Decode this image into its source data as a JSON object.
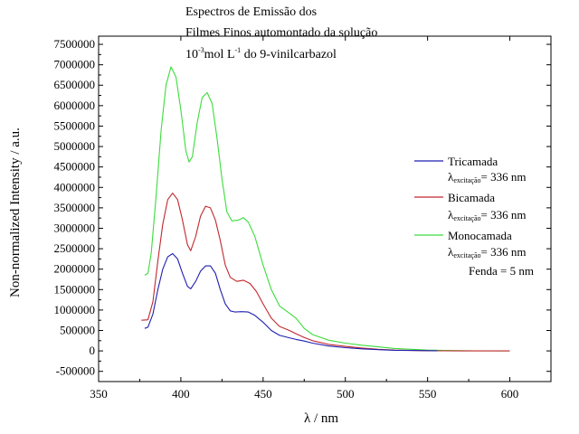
{
  "chart_data": {
    "type": "line",
    "title_lines": [
      "Espectros de Emissão dos",
      "Filmes Finos automontado da solução"
    ],
    "title_line3": {
      "prefix": "10",
      "exp": "-3",
      "mid": "mol L",
      "exp2": "-1",
      "suffix": " do 9-vinilcarbazol"
    },
    "xlabel": "λ / nm",
    "ylabel": "Non-normalized Intensity / a.u.",
    "xlim": [
      350,
      625
    ],
    "ylim": [
      -750000,
      7700000
    ],
    "xticks": [
      350,
      400,
      450,
      500,
      550,
      600
    ],
    "yticks": [
      -500000,
      0,
      500000,
      1000000,
      1500000,
      2000000,
      2500000,
      3000000,
      3500000,
      4000000,
      4500000,
      5000000,
      5500000,
      6000000,
      6500000,
      7000000,
      7500000
    ],
    "legend_placement": "right",
    "grid": false,
    "series": [
      {
        "name": "Tricamada",
        "note": {
          "prefix": "λ",
          "sub": "excitação",
          "suffix": "= 336 nm"
        },
        "color": "#1f1fb0",
        "points": [
          [
            378,
            550000
          ],
          [
            380,
            580000
          ],
          [
            383,
            900000
          ],
          [
            386,
            1500000
          ],
          [
            389,
            2000000
          ],
          [
            392,
            2300000
          ],
          [
            395,
            2380000
          ],
          [
            398,
            2250000
          ],
          [
            401,
            1900000
          ],
          [
            404,
            1580000
          ],
          [
            406,
            1520000
          ],
          [
            409,
            1700000
          ],
          [
            412,
            1950000
          ],
          [
            415,
            2080000
          ],
          [
            418,
            2080000
          ],
          [
            421,
            1900000
          ],
          [
            424,
            1500000
          ],
          [
            427,
            1150000
          ],
          [
            430,
            980000
          ],
          [
            433,
            950000
          ],
          [
            437,
            960000
          ],
          [
            441,
            950000
          ],
          [
            445,
            870000
          ],
          [
            450,
            700000
          ],
          [
            455,
            500000
          ],
          [
            460,
            380000
          ],
          [
            466,
            320000
          ],
          [
            470,
            280000
          ],
          [
            475,
            240000
          ],
          [
            480,
            190000
          ],
          [
            490,
            120000
          ],
          [
            500,
            80000
          ],
          [
            510,
            50000
          ],
          [
            520,
            30000
          ],
          [
            530,
            15000
          ],
          [
            540,
            10000
          ],
          [
            556,
            5000
          ]
        ]
      },
      {
        "name": "Bicamada",
        "note": {
          "prefix": "λ",
          "sub": "excitação",
          "suffix": "= 336 nm"
        },
        "color": "#c0282d",
        "points": [
          [
            376,
            750000
          ],
          [
            380,
            760000
          ],
          [
            383,
            1200000
          ],
          [
            386,
            2200000
          ],
          [
            389,
            3100000
          ],
          [
            392,
            3700000
          ],
          [
            395,
            3860000
          ],
          [
            398,
            3700000
          ],
          [
            401,
            3200000
          ],
          [
            404,
            2600000
          ],
          [
            406,
            2450000
          ],
          [
            409,
            2800000
          ],
          [
            412,
            3300000
          ],
          [
            415,
            3540000
          ],
          [
            418,
            3500000
          ],
          [
            421,
            3200000
          ],
          [
            424,
            2700000
          ],
          [
            427,
            2100000
          ],
          [
            430,
            1800000
          ],
          [
            434,
            1700000
          ],
          [
            438,
            1730000
          ],
          [
            442,
            1650000
          ],
          [
            446,
            1450000
          ],
          [
            450,
            1150000
          ],
          [
            455,
            800000
          ],
          [
            460,
            600000
          ],
          [
            466,
            500000
          ],
          [
            470,
            420000
          ],
          [
            475,
            330000
          ],
          [
            480,
            250000
          ],
          [
            490,
            160000
          ],
          [
            500,
            110000
          ],
          [
            510,
            70000
          ],
          [
            520,
            40000
          ],
          [
            530,
            20000
          ],
          [
            540,
            10000
          ],
          [
            550,
            5000
          ],
          [
            560,
            2000
          ],
          [
            580,
            0
          ],
          [
            600,
            0
          ]
        ]
      },
      {
        "name": "Monocamada",
        "note": {
          "prefix": "λ",
          "sub": "excitação",
          "suffix": "= 336 nm"
        },
        "color": "#3cdc3c",
        "points": [
          [
            378,
            1850000
          ],
          [
            380,
            1900000
          ],
          [
            382,
            2400000
          ],
          [
            385,
            3800000
          ],
          [
            388,
            5400000
          ],
          [
            391,
            6500000
          ],
          [
            394,
            6950000
          ],
          [
            397,
            6700000
          ],
          [
            400,
            5900000
          ],
          [
            403,
            4900000
          ],
          [
            405,
            4620000
          ],
          [
            407,
            4750000
          ],
          [
            410,
            5600000
          ],
          [
            413,
            6200000
          ],
          [
            416,
            6320000
          ],
          [
            419,
            6050000
          ],
          [
            422,
            5200000
          ],
          [
            425,
            4200000
          ],
          [
            428,
            3400000
          ],
          [
            431,
            3180000
          ],
          [
            435,
            3200000
          ],
          [
            438,
            3260000
          ],
          [
            441,
            3150000
          ],
          [
            445,
            2800000
          ],
          [
            450,
            2100000
          ],
          [
            455,
            1500000
          ],
          [
            460,
            1100000
          ],
          [
            465,
            950000
          ],
          [
            470,
            800000
          ],
          [
            475,
            550000
          ],
          [
            480,
            400000
          ],
          [
            490,
            260000
          ],
          [
            500,
            190000
          ],
          [
            510,
            140000
          ],
          [
            520,
            100000
          ],
          [
            530,
            60000
          ],
          [
            540,
            40000
          ],
          [
            550,
            20000
          ],
          [
            560,
            10000
          ],
          [
            580,
            3000
          ],
          [
            600,
            0
          ]
        ]
      }
    ],
    "annotation": "Fenda = 5 nm"
  }
}
